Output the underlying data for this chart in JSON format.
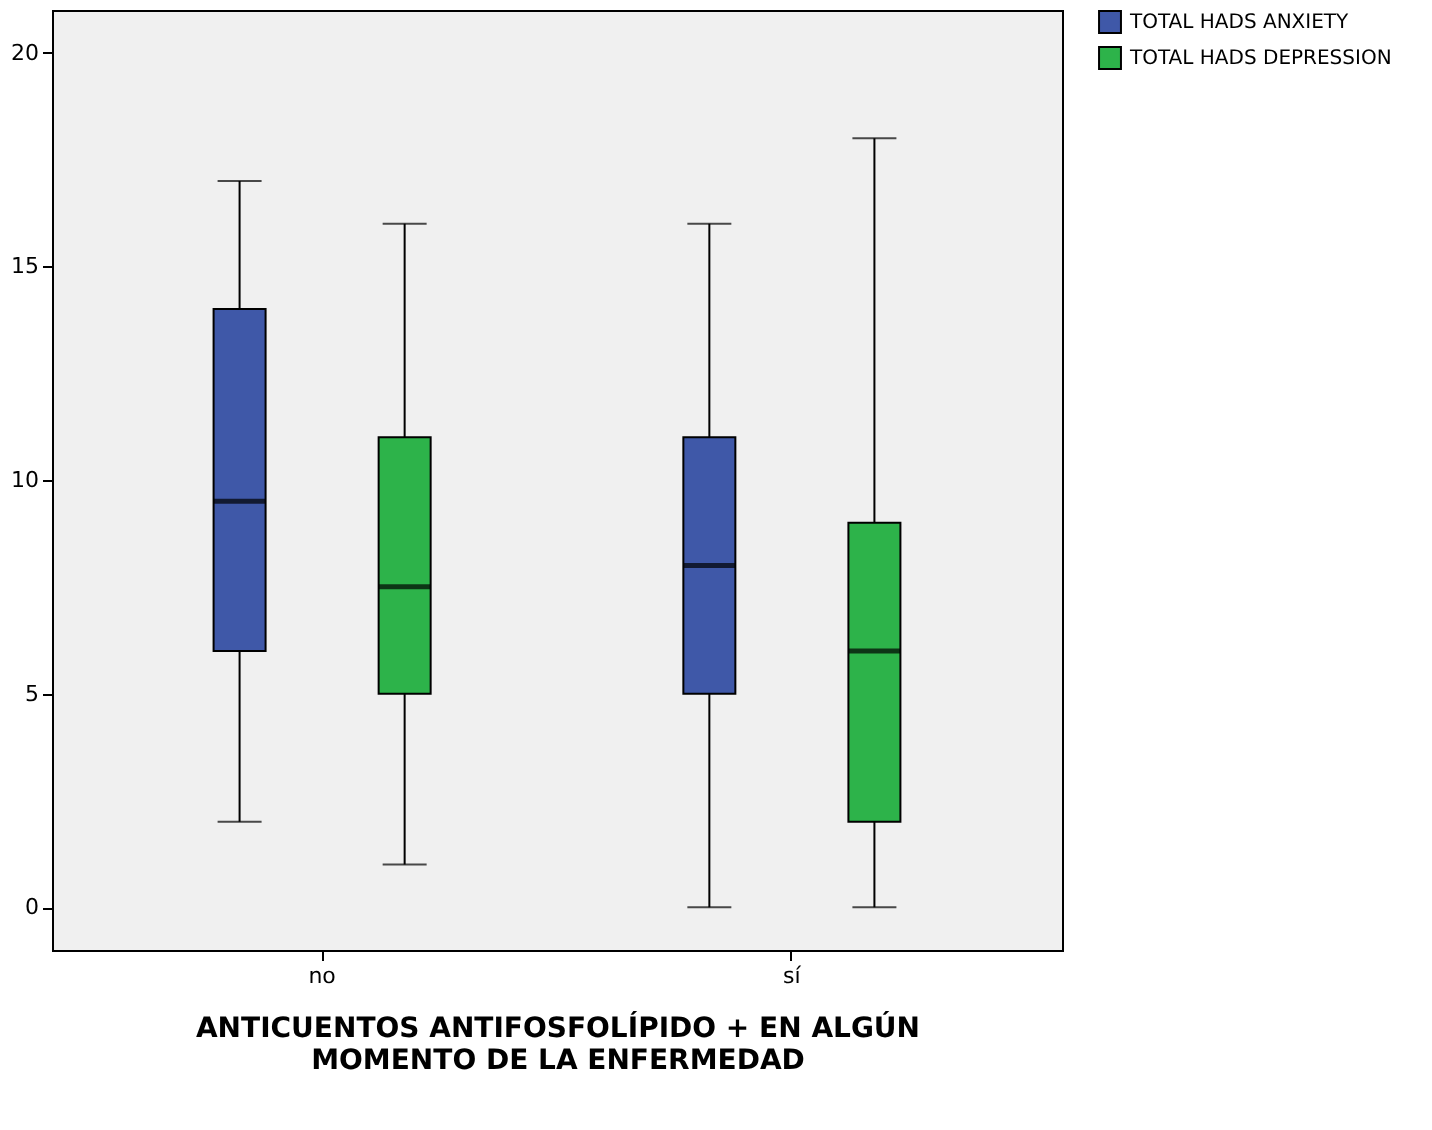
{
  "chart_data": {
    "type": "box",
    "xlabel": "ANTICUENTOS ANTIFOSFOLÍPIDO + EN ALGÚN\nMOMENTO DE LA ENFERMEDAD",
    "categories": [
      "no",
      "sí"
    ],
    "series": [
      {
        "name": "TOTAL HADS ANXIETY",
        "color": "#3f58a8",
        "boxes": [
          {
            "low": 2,
            "q1": 6,
            "median": 9.5,
            "q3": 14,
            "high": 17
          },
          {
            "low": 0,
            "q1": 5,
            "median": 8,
            "q3": 11,
            "high": 16
          }
        ]
      },
      {
        "name": "TOTAL HADS DEPRESSION",
        "color": "#2db34a",
        "boxes": [
          {
            "low": 1,
            "q1": 5,
            "median": 7.5,
            "q3": 11,
            "high": 16
          },
          {
            "low": 0,
            "q1": 2,
            "median": 6,
            "q3": 9,
            "high": 18
          }
        ]
      }
    ],
    "ylim": [
      -1,
      21
    ],
    "yticks": [
      0,
      5,
      10,
      15,
      20
    ],
    "grid": false,
    "legend": "top right"
  }
}
